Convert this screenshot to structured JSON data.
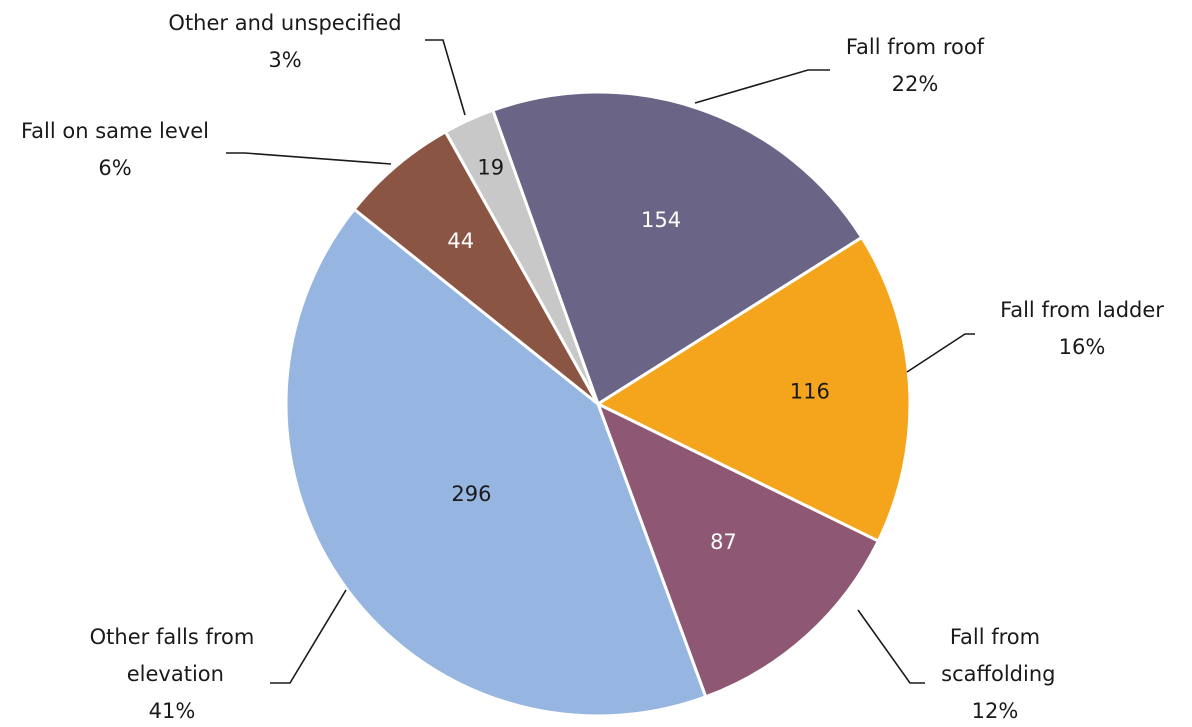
{
  "chart_data": {
    "type": "pie",
    "categories": [
      "Fall from roof",
      "Fall from ladder",
      "Fall from scaffolding",
      "Other falls from elevation",
      "Fall on same level",
      "Other and unspecified"
    ],
    "values": [
      154,
      116,
      87,
      296,
      44,
      19
    ],
    "percent_labels": [
      "22%",
      "16%",
      "12%",
      "41%",
      "6%",
      "3%"
    ],
    "colors": [
      "#6a6587",
      "#f5a51c",
      "#8e5874",
      "#96b5e0",
      "#8b5543",
      "#c8c8c8"
    ]
  }
}
